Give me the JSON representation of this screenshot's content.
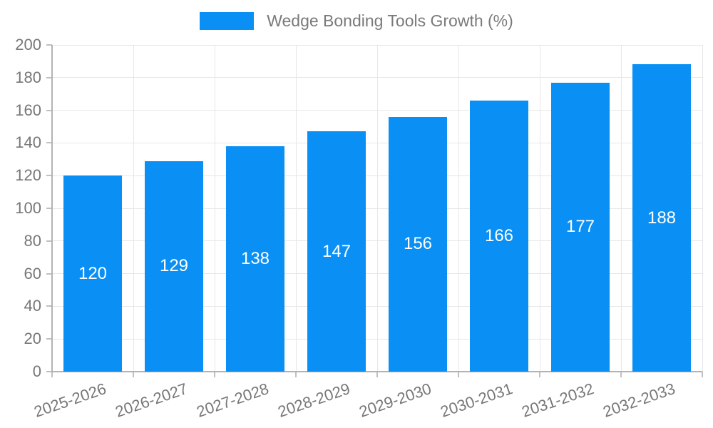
{
  "legend": {
    "label": "Wedge Bonding Tools Growth (%)"
  },
  "chart_data": {
    "type": "bar",
    "title": "",
    "xlabel": "",
    "ylabel": "",
    "categories": [
      "2025-2026",
      "2026-2027",
      "2027-2028",
      "2028-2029",
      "2029-2030",
      "2030-2031",
      "2031-2032",
      "2032-2033"
    ],
    "series": [
      {
        "name": "Wedge Bonding Tools Growth (%)",
        "values": [
          120,
          129,
          138,
          147,
          156,
          166,
          177,
          188
        ]
      }
    ],
    "ylim": [
      0,
      200
    ],
    "ytick_step": 20,
    "ytick_labels": [
      "0",
      "20",
      "40",
      "60",
      "80",
      "100",
      "120",
      "140",
      "160",
      "180",
      "200"
    ],
    "grid": true,
    "legend_position": "top",
    "bar_color": "#0a90f5",
    "value_label_color": "#ffffff",
    "grid_color": "#e7e7e7",
    "axis_color": "#b3b3b3",
    "tick_color": "#c0c0c0",
    "tick_label_color": "#777777"
  }
}
